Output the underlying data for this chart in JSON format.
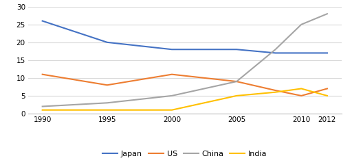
{
  "years": [
    1990,
    1995,
    2000,
    2005,
    2008,
    2010,
    2012
  ],
  "japan": [
    26,
    20,
    18,
    18,
    17,
    17,
    17
  ],
  "us": [
    11,
    8,
    11,
    9,
    6.5,
    5,
    7
  ],
  "china": [
    2,
    3,
    5,
    9,
    18,
    25,
    28
  ],
  "india": [
    1,
    1,
    1,
    5,
    6,
    7,
    5
  ],
  "japan_color": "#4472C4",
  "us_color": "#ED7D31",
  "china_color": "#A5A5A5",
  "india_color": "#FFC000",
  "ylim": [
    0,
    30
  ],
  "yticks": [
    0,
    5,
    10,
    15,
    20,
    25,
    30
  ],
  "xticks": [
    1990,
    1995,
    2000,
    2005,
    2010,
    2012
  ],
  "legend_labels": [
    "Japan",
    "US",
    "China",
    "India"
  ],
  "background_color": "#ffffff",
  "linewidth": 1.5
}
